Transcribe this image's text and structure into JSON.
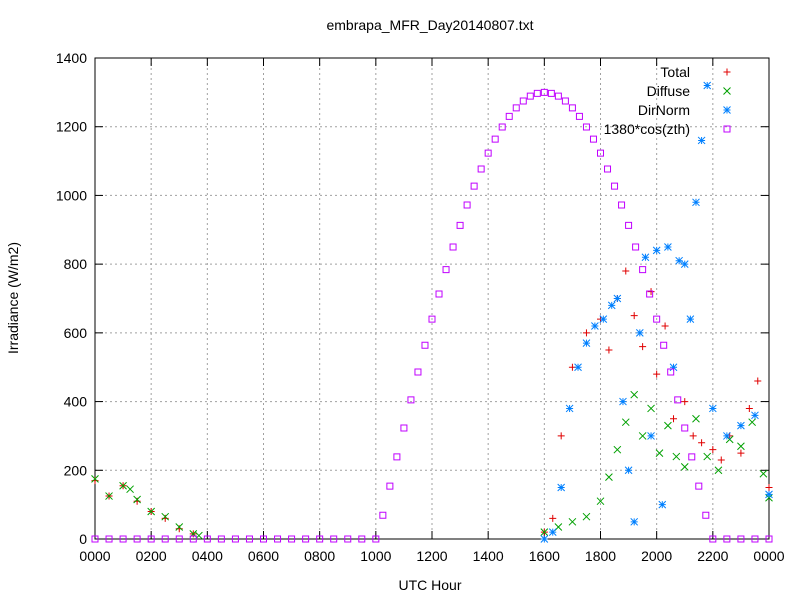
{
  "chart_data": {
    "type": "scatter",
    "title": "embrapa_MFR_Day20140807.txt",
    "x_label": "UTC Hour",
    "y_label": "Irradiance (W/m2)",
    "xlim": [
      0,
      24
    ],
    "ylim": [
      0,
      1400
    ],
    "xticks": [
      {
        "value": 0,
        "label": "0000"
      },
      {
        "value": 2,
        "label": "0200"
      },
      {
        "value": 4,
        "label": "0400"
      },
      {
        "value": 6,
        "label": "0600"
      },
      {
        "value": 8,
        "label": "0800"
      },
      {
        "value": 10,
        "label": "1000"
      },
      {
        "value": 12,
        "label": "1200"
      },
      {
        "value": 14,
        "label": "1400"
      },
      {
        "value": 16,
        "label": "1600"
      },
      {
        "value": 18,
        "label": "1800"
      },
      {
        "value": 20,
        "label": "2000"
      },
      {
        "value": 22,
        "label": "2200"
      },
      {
        "value": 24,
        "label": "0000"
      }
    ],
    "yticks": [
      0,
      200,
      400,
      600,
      800,
      1000,
      1200,
      1400
    ],
    "grid": true,
    "legend": "top-right",
    "series": [
      {
        "name": "Total",
        "color": "#e00000",
        "marker": "plus",
        "x": [
          0,
          0.5,
          1,
          1.5,
          2,
          2.5,
          3,
          3.5,
          16,
          16.3,
          16.6,
          17,
          17.5,
          18,
          18.3,
          18.6,
          18.9,
          19.2,
          19.5,
          19.8,
          20,
          20.3,
          20.6,
          21,
          21.3,
          21.6,
          22,
          22.3,
          22.6,
          23,
          23.3,
          23.6,
          24
        ],
        "values": [
          170,
          125,
          155,
          110,
          80,
          60,
          30,
          15,
          20,
          60,
          300,
          500,
          600,
          640,
          550,
          700,
          780,
          650,
          560,
          720,
          480,
          620,
          350,
          400,
          300,
          280,
          260,
          230,
          300,
          250,
          380,
          460,
          150
        ]
      },
      {
        "name": "Diffuse",
        "color": "#00a000",
        "marker": "cross",
        "x": [
          0,
          0.5,
          1,
          1.25,
          1.5,
          2,
          2.5,
          3,
          3.5,
          3.7,
          16,
          16.5,
          17,
          17.5,
          18,
          18.3,
          18.6,
          18.9,
          19.2,
          19.5,
          19.8,
          20.1,
          20.4,
          20.7,
          21,
          21.4,
          21.8,
          22.2,
          22.6,
          23,
          23.4,
          23.8,
          24
        ],
        "values": [
          175,
          125,
          155,
          145,
          115,
          80,
          65,
          35,
          15,
          10,
          20,
          35,
          50,
          65,
          110,
          180,
          260,
          340,
          420,
          300,
          380,
          250,
          330,
          240,
          210,
          350,
          240,
          200,
          290,
          270,
          340,
          190,
          120
        ]
      },
      {
        "name": "DirNorm",
        "color": "#0080ff",
        "marker": "star",
        "x": [
          16,
          16.3,
          16.6,
          16.9,
          17.2,
          17.5,
          17.8,
          18.1,
          18.4,
          18.6,
          18.8,
          19,
          19.2,
          19.4,
          19.6,
          19.8,
          20,
          20.2,
          20.4,
          20.6,
          20.8,
          21,
          21.2,
          21.4,
          21.6,
          21.8,
          22,
          22.5,
          23,
          23.5,
          24
        ],
        "values": [
          0,
          20,
          150,
          380,
          500,
          570,
          620,
          640,
          680,
          700,
          400,
          200,
          50,
          600,
          820,
          300,
          840,
          100,
          850,
          500,
          810,
          800,
          640,
          980,
          1160,
          1320,
          380,
          300,
          330,
          360,
          130
        ]
      },
      {
        "name": "1380*cos(zth)",
        "color": "#c000ff",
        "marker": "square",
        "x": [
          0,
          0.5,
          1,
          1.5,
          2,
          2.5,
          3,
          3.5,
          4,
          4.5,
          5,
          5.5,
          6,
          6.5,
          7,
          7.5,
          8,
          8.5,
          9,
          9.5,
          10,
          10.25,
          10.5,
          10.75,
          11,
          11.25,
          11.5,
          11.75,
          12,
          12.25,
          12.5,
          12.75,
          13,
          13.25,
          13.5,
          13.75,
          14,
          14.25,
          14.5,
          14.75,
          15,
          15.25,
          15.5,
          15.75,
          16,
          16.25,
          16.5,
          16.75,
          17,
          17.25,
          17.5,
          17.75,
          18,
          18.25,
          18.5,
          18.75,
          19,
          19.25,
          19.5,
          19.75,
          20,
          20.25,
          20.5,
          20.75,
          21,
          21.25,
          21.5,
          21.75,
          22,
          22.5,
          23,
          23.5,
          24
        ],
        "values": [
          0,
          0,
          0,
          0,
          0,
          0,
          0,
          0,
          0,
          0,
          0,
          0,
          0,
          0,
          0,
          0,
          0,
          0,
          0,
          0,
          0,
          69,
          154,
          239,
          323,
          405,
          486,
          564,
          640,
          713,
          784,
          850,
          913,
          972,
          1027,
          1077,
          1123,
          1164,
          1199,
          1230,
          1255,
          1275,
          1289,
          1297,
          1300,
          1297,
          1289,
          1275,
          1255,
          1230,
          1199,
          1164,
          1123,
          1077,
          1027,
          972,
          913,
          850,
          784,
          713,
          640,
          564,
          486,
          405,
          323,
          239,
          154,
          69,
          0,
          0,
          0,
          0,
          0
        ]
      }
    ]
  }
}
